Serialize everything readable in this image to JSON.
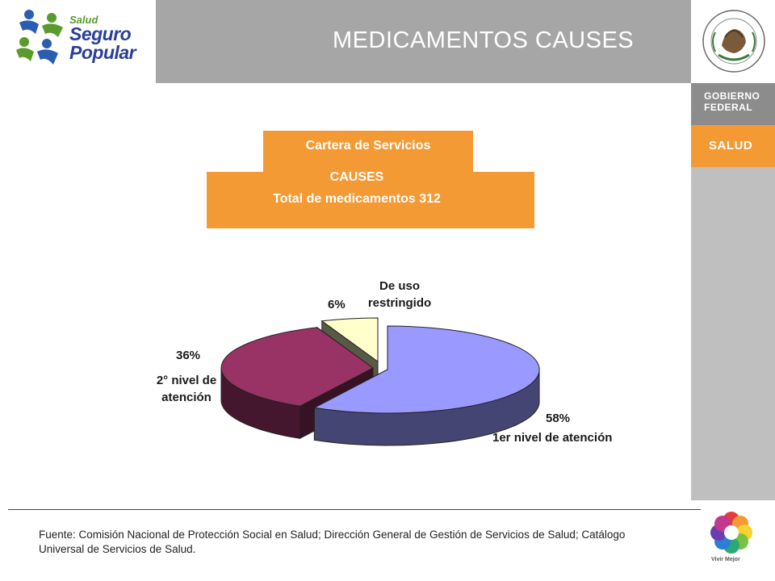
{
  "header": {
    "title": "MEDICAMENTOS CAUSES",
    "logo_small": "Salud",
    "logo_line1": "Seguro",
    "logo_line2": "Popular"
  },
  "sidebar": {
    "gov_line1": "GOBIERNO",
    "gov_line2": "FEDERAL",
    "salud": "SALUD",
    "vivir": "Vivir Mejor",
    "seal_text": "ESTADOS UNIDOS MEXICANOS"
  },
  "info": {
    "cartera": "Cartera de Servicios",
    "causes": "CAUSES",
    "total": "Total de medicamentos 312"
  },
  "chart_data": {
    "type": "pie",
    "title": "",
    "slices": [
      {
        "label": "1er nivel de atención",
        "value": 58,
        "value_label": "58%",
        "color": "#9999ff"
      },
      {
        "label": "2° nivel de atención",
        "value": 36,
        "value_label": "36%",
        "color": "#993366"
      },
      {
        "label": "De uso restringido",
        "value": 6,
        "value_label": "6%",
        "color": "#ffffcc"
      }
    ],
    "style": "3d-exploded"
  },
  "footer": {
    "source": "Fuente: Comisión Nacional de Protección Social en Salud; Dirección General de Gestión de Servicios de Salud; Catálogo Universal de Servicios de Salud."
  }
}
